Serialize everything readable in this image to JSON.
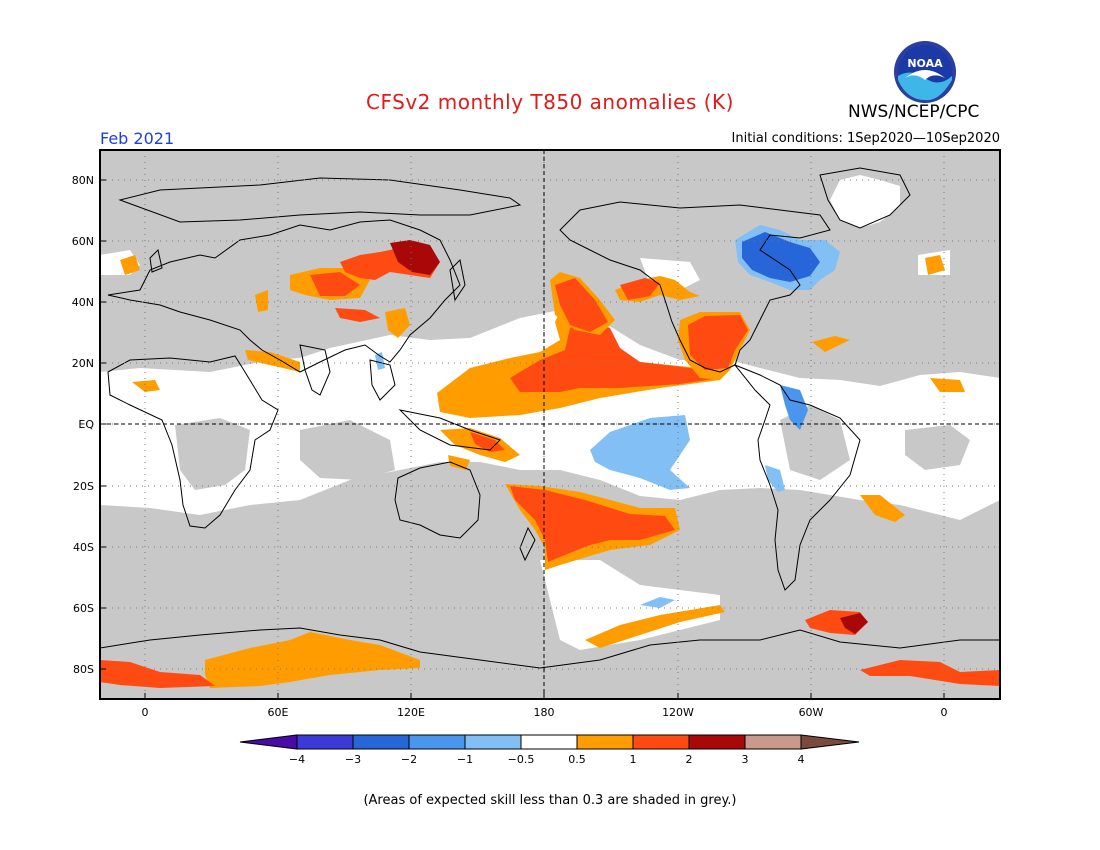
{
  "header": {
    "title": "CFSv2 monthly T850 anomalies (K)",
    "org": "NWS/NCEP/CPC",
    "logo_text": "NOAA",
    "month": "Feb 2021",
    "initial_conditions": "Initial conditions: 1Sep2020—10Sep2020"
  },
  "axes": {
    "lat_labels": [
      "80N",
      "60N",
      "40N",
      "20N",
      "EQ",
      "20S",
      "40S",
      "60S",
      "80S"
    ],
    "lon_labels": [
      "0",
      "60E",
      "120E",
      "180",
      "120W",
      "60W",
      "0"
    ]
  },
  "legend": {
    "labels": [
      "−4",
      "−3",
      "−2",
      "−1",
      "−0.5",
      "0.5",
      "1",
      "2",
      "3",
      "4"
    ],
    "colors": [
      "#4a0aa8",
      "#3a3ad6",
      "#2766d9",
      "#4a96ee",
      "#82bff5",
      "#ffffff",
      "#ff9d00",
      "#ff4b12",
      "#a80808",
      "#c9998c",
      "#7a4a3c"
    ]
  },
  "colors": {
    "grey": "#c8c8c8",
    "warm1": "#ff9d00",
    "warm2": "#ff4b12",
    "warm3": "#a80808",
    "cool1": "#82bff5",
    "cool2": "#4a96ee",
    "cool3": "#2766d9",
    "title": "#e11a1a",
    "month": "#1f3fd6"
  },
  "footer": {
    "caption": "(Areas of expected skill less than 0.3 are shaded in grey.)"
  }
}
